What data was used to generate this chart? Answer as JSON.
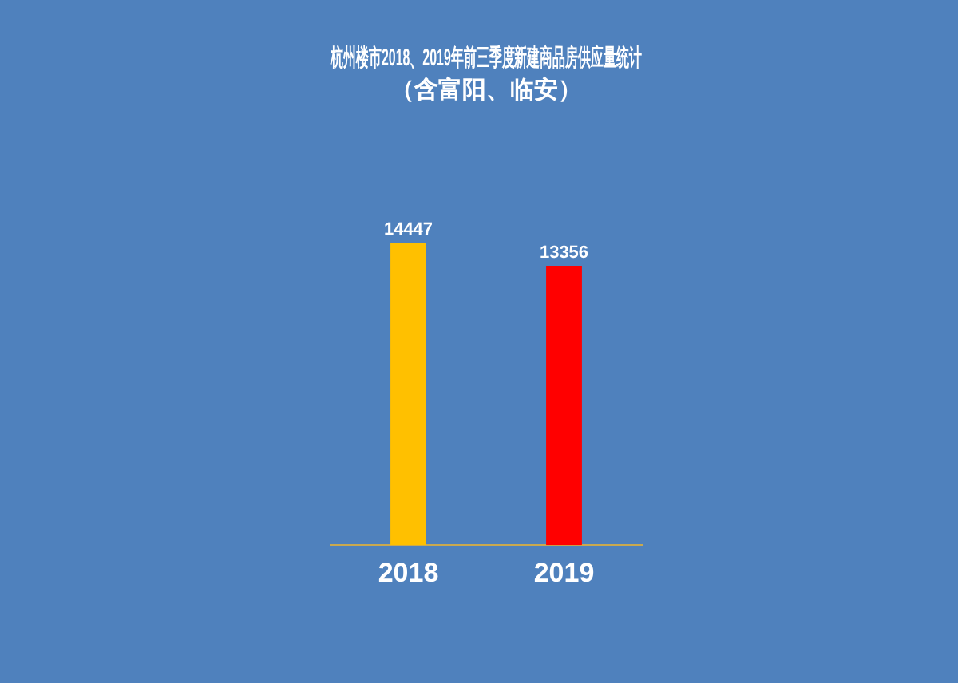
{
  "chart_data": {
    "type": "bar",
    "title": "杭州楼市2018、2019年前三季度新建商品房供应量统计",
    "subtitle": "（含富阳、临安）",
    "categories": [
      "2018",
      "2019"
    ],
    "values": [
      14447,
      13356
    ],
    "colors": [
      "#ffc000",
      "#ff0000"
    ],
    "data_labels": true,
    "grid": false,
    "legend": false
  }
}
